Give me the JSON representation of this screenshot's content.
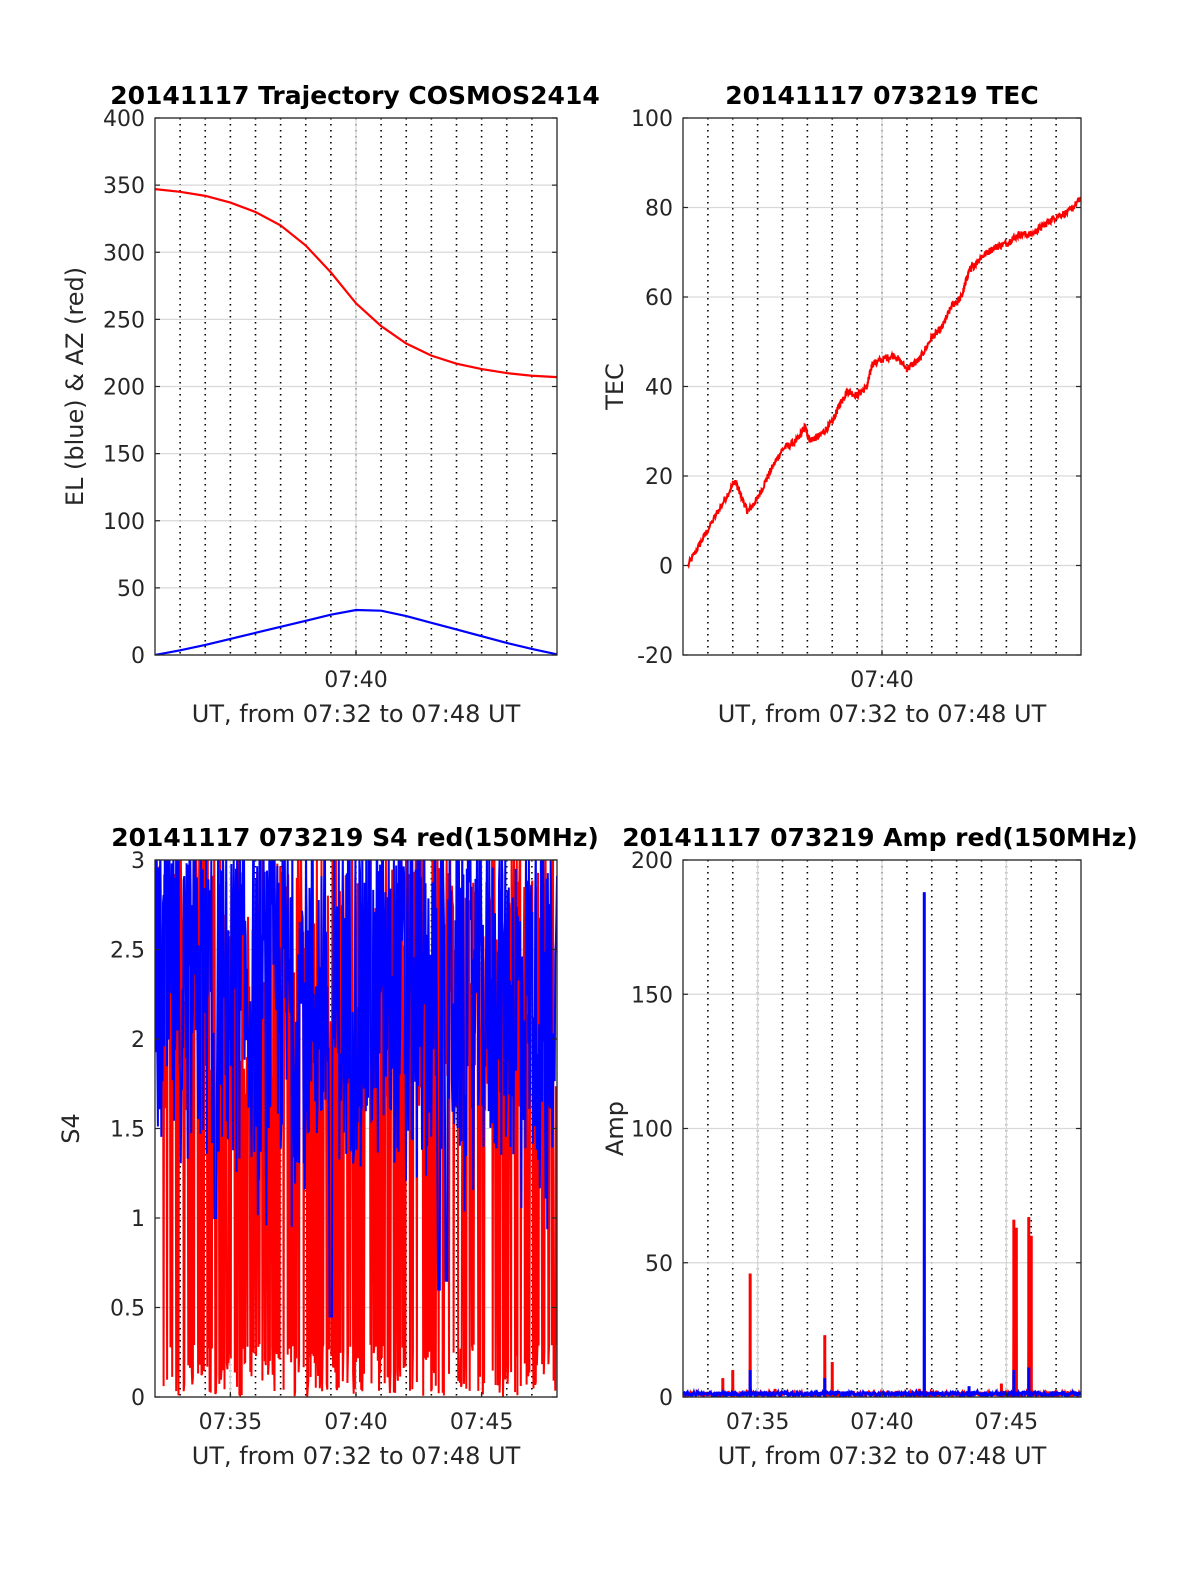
{
  "chart_data": [
    {
      "type": "line",
      "title": "20141117 Trajectory COSMOS2414",
      "xlabel": "UT, from 07:32 to 07:48 UT",
      "ylabel": "EL (blue) & AZ (red)",
      "xlim": [
        0,
        16
      ],
      "ylim": [
        0,
        400
      ],
      "x_tick_labels": [
        {
          "x": 8,
          "label": "07:40"
        }
      ],
      "y_ticks": [
        0,
        50,
        100,
        150,
        200,
        250,
        300,
        350,
        400
      ],
      "grid": true,
      "minor_vertical_dotted_grid": true,
      "series": [
        {
          "color": "#ff0000",
          "x": [
            0,
            1,
            2,
            3,
            4,
            5,
            6,
            7,
            8,
            9,
            10,
            11,
            12,
            13,
            14,
            15,
            16
          ],
          "y": [
            347,
            345,
            342,
            337,
            330,
            320,
            305,
            285,
            262,
            245,
            232,
            223,
            217,
            213,
            210,
            208,
            207
          ]
        },
        {
          "color": "#0000ff",
          "x": [
            0,
            1,
            2,
            3,
            4,
            5,
            6,
            7,
            8,
            9,
            10,
            11,
            12,
            13,
            14,
            15,
            16
          ],
          "y": [
            0,
            3.5,
            7.5,
            12,
            16.5,
            21,
            25.5,
            30,
            33.5,
            33,
            29,
            24,
            19,
            14,
            9,
            4.5,
            0.5
          ]
        }
      ]
    },
    {
      "type": "line",
      "title": "20141117 073219 TEC",
      "xlabel": "UT, from 07:32 to 07:48 UT",
      "ylabel": "TEC",
      "xlim": [
        0,
        16
      ],
      "ylim": [
        -20,
        100
      ],
      "x_tick_labels": [
        {
          "x": 8,
          "label": "07:40"
        }
      ],
      "y_ticks": [
        -20,
        0,
        20,
        40,
        60,
        80,
        100
      ],
      "grid": true,
      "minor_vertical_dotted_grid": true,
      "series": [
        {
          "color": "#ff0000",
          "x": [
            0.2,
            0.8,
            1.5,
            2.1,
            2.3,
            2.6,
            3.0,
            3.5,
            4.0,
            4.6,
            4.9,
            5.1,
            5.5,
            6.0,
            6.3,
            6.6,
            7.0,
            7.4,
            7.6,
            8.0,
            8.5,
            9.0,
            9.5,
            10.0,
            10.4,
            10.8,
            11.2,
            11.5,
            11.7,
            12.0,
            12.5,
            13.0,
            13.5,
            14.0,
            14.5,
            15.0,
            15.5,
            16.0
          ],
          "y": [
            0,
            6,
            13,
            19,
            16,
            12,
            15,
            21,
            26,
            28,
            31,
            28,
            29,
            32,
            36,
            39,
            38,
            40,
            45,
            46,
            47,
            44,
            46,
            51,
            53,
            58,
            60,
            66,
            67,
            69,
            71,
            72,
            74,
            74,
            76,
            78,
            79,
            82
          ]
        }
      ]
    },
    {
      "type": "line",
      "title": "20141117 073219 S4 red(150MHz)",
      "xlabel": "UT, from 07:32 to 07:48 UT",
      "ylabel": "S4",
      "xlim": [
        0,
        16
      ],
      "ylim": [
        0,
        3
      ],
      "x_tick_labels": [
        {
          "x": 3,
          "label": "07:35"
        },
        {
          "x": 8,
          "label": "07:40"
        },
        {
          "x": 13,
          "label": "07:45"
        }
      ],
      "y_ticks": [
        0,
        0.5,
        1,
        1.5,
        2,
        2.5,
        3
      ],
      "grid": true,
      "series": [
        {
          "color": "#ff0000",
          "note_type": "noise",
          "x": [
            0,
            16
          ],
          "y": [
            0,
            3
          ]
        },
        {
          "color": "#0000ff",
          "note_type": "noise",
          "x": [
            0,
            16
          ],
          "y": [
            0.42,
            3
          ]
        }
      ]
    },
    {
      "type": "line",
      "title": "20141117 073219 Amp red(150MHz)",
      "xlabel": "UT, from 07:32 to 07:48 UT",
      "ylabel": "Amp",
      "xlim": [
        0,
        16
      ],
      "ylim": [
        0,
        200
      ],
      "x_tick_labels": [
        {
          "x": 3,
          "label": "07:35"
        },
        {
          "x": 8,
          "label": "07:40"
        },
        {
          "x": 13,
          "label": "07:45"
        }
      ],
      "y_ticks": [
        0,
        50,
        100,
        150,
        200
      ],
      "grid": true,
      "minor_vertical_dotted_grid": true,
      "series": [
        {
          "color": "#ff0000",
          "spikes_x": [
            1.6,
            2.0,
            2.7,
            3.7,
            5.7,
            6.0,
            9.5,
            12.8,
            13.3,
            13.4,
            13.9,
            14.0
          ],
          "spikes_y": [
            7,
            10,
            46,
            3,
            23,
            13,
            3,
            5,
            66,
            63,
            67,
            60
          ]
        },
        {
          "color": "#0000ff",
          "spikes_x": [
            2.7,
            5.7,
            9.7,
            11.5,
            13.3,
            13.9
          ],
          "spikes_y": [
            10,
            7,
            188,
            4,
            10,
            11
          ]
        }
      ]
    }
  ]
}
